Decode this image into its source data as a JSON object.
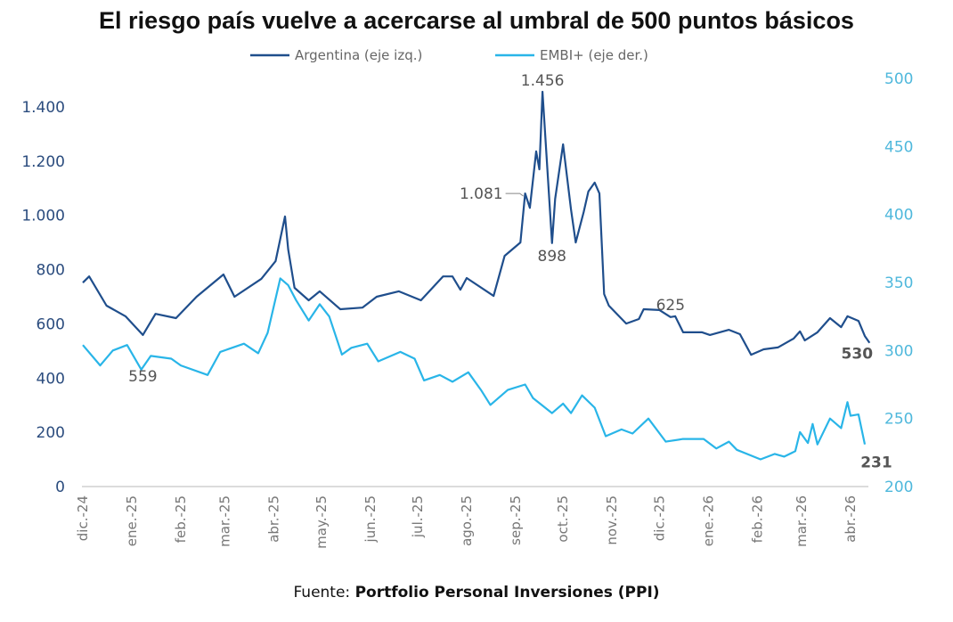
{
  "chart_data": {
    "type": "line",
    "title": "El riesgo país vuelve a acercarse al umbral de 500 puntos básicos",
    "source_prefix": "Fuente: ",
    "source": "Portfolio Personal Inversiones (PPI)",
    "legend_placement": "top",
    "grid": false,
    "x_range": [
      "2024-12-01",
      "2026-04-13"
    ],
    "x_ticks": [
      {
        "date": "2024-12-01",
        "label": "dic.-24"
      },
      {
        "date": "2025-01-01",
        "label": "ene.-25"
      },
      {
        "date": "2025-02-01",
        "label": "feb.-25"
      },
      {
        "date": "2025-03-01",
        "label": "mar.-25"
      },
      {
        "date": "2025-04-01",
        "label": "abr.-25"
      },
      {
        "date": "2025-05-01",
        "label": "may.-25"
      },
      {
        "date": "2025-06-01",
        "label": "jun.-25"
      },
      {
        "date": "2025-07-01",
        "label": "jul.-25"
      },
      {
        "date": "2025-08-01",
        "label": "ago.-25"
      },
      {
        "date": "2025-09-01",
        "label": "sep.-25"
      },
      {
        "date": "2025-10-01",
        "label": "oct.-25"
      },
      {
        "date": "2025-11-01",
        "label": "nov.-25"
      },
      {
        "date": "2025-12-01",
        "label": "dic.-25"
      },
      {
        "date": "2026-01-01",
        "label": "ene.-26"
      },
      {
        "date": "2026-02-01",
        "label": "feb.-26"
      },
      {
        "date": "2026-03-01",
        "label": "mar.-26"
      },
      {
        "date": "2026-04-01",
        "label": "abr.-26"
      }
    ],
    "y_left": {
      "range": [
        0,
        1400
      ],
      "ticks": [
        0,
        200,
        400,
        600,
        800,
        1000,
        1200,
        1400
      ],
      "tick_labels": [
        "0",
        "200",
        "400",
        "600",
        "800",
        "1.000",
        "1.200",
        "1.400"
      ]
    },
    "y_right": {
      "range": [
        200,
        500
      ],
      "ticks": [
        200,
        250,
        300,
        350,
        400,
        450,
        500
      ],
      "tick_labels": [
        "200",
        "250",
        "300",
        "350",
        "400",
        "450",
        "500"
      ]
    },
    "series": [
      {
        "name": "Argentina (eje izq.)",
        "axis": "left",
        "color": "#1f4e8c",
        "points": [
          [
            "2024-12-01",
            752
          ],
          [
            "2024-12-05",
            775
          ],
          [
            "2024-12-16",
            667
          ],
          [
            "2024-12-28",
            628
          ],
          [
            "2025-01-08",
            559
          ],
          [
            "2025-01-16",
            637
          ],
          [
            "2025-01-29",
            621
          ],
          [
            "2025-02-11",
            700
          ],
          [
            "2025-02-28",
            782
          ],
          [
            "2025-03-07",
            700
          ],
          [
            "2025-03-24",
            766
          ],
          [
            "2025-04-02",
            831
          ],
          [
            "2025-04-08",
            996
          ],
          [
            "2025-04-10",
            874
          ],
          [
            "2025-04-14",
            733
          ],
          [
            "2025-04-23",
            687
          ],
          [
            "2025-04-30",
            720
          ],
          [
            "2025-05-13",
            654
          ],
          [
            "2025-05-27",
            660
          ],
          [
            "2025-06-05",
            700
          ],
          [
            "2025-06-19",
            720
          ],
          [
            "2025-07-03",
            687
          ],
          [
            "2025-07-17",
            775
          ],
          [
            "2025-07-23",
            775
          ],
          [
            "2025-07-28",
            726
          ],
          [
            "2025-08-01",
            769
          ],
          [
            "2025-08-18",
            703
          ],
          [
            "2025-08-25",
            851
          ],
          [
            "2025-09-04",
            900
          ],
          [
            "2025-09-07",
            1081
          ],
          [
            "2025-09-10",
            1028
          ],
          [
            "2025-09-14",
            1236
          ],
          [
            "2025-09-16",
            1170
          ],
          [
            "2025-09-18",
            1456
          ],
          [
            "2025-09-24",
            898
          ],
          [
            "2025-09-26",
            1061
          ],
          [
            "2025-10-01",
            1262
          ],
          [
            "2025-10-06",
            1022
          ],
          [
            "2025-10-09",
            900
          ],
          [
            "2025-10-14",
            1012
          ],
          [
            "2025-10-17",
            1088
          ],
          [
            "2025-10-21",
            1121
          ],
          [
            "2025-10-24",
            1081
          ],
          [
            "2025-10-27",
            710
          ],
          [
            "2025-10-30",
            667
          ],
          [
            "2025-11-10",
            601
          ],
          [
            "2025-11-18",
            618
          ],
          [
            "2025-11-21",
            654
          ],
          [
            "2025-12-01",
            651
          ],
          [
            "2025-12-08",
            625
          ],
          [
            "2025-12-11",
            628
          ],
          [
            "2025-12-16",
            569
          ],
          [
            "2025-12-28",
            569
          ],
          [
            "2026-01-02",
            559
          ],
          [
            "2026-01-14",
            578
          ],
          [
            "2026-01-21",
            562
          ],
          [
            "2026-01-28",
            486
          ],
          [
            "2026-02-05",
            506
          ],
          [
            "2026-02-14",
            513
          ],
          [
            "2026-02-24",
            546
          ],
          [
            "2026-02-28",
            572
          ],
          [
            "2026-03-03",
            539
          ],
          [
            "2026-03-11",
            569
          ],
          [
            "2026-03-19",
            621
          ],
          [
            "2026-03-26",
            588
          ],
          [
            "2026-03-30",
            628
          ],
          [
            "2026-04-06",
            611
          ],
          [
            "2026-04-10",
            555
          ],
          [
            "2026-04-13",
            530
          ]
        ]
      },
      {
        "name": "EMBI+ (eje der.)",
        "axis": "right",
        "color": "#29b5e8",
        "points": [
          [
            "2024-12-01",
            304
          ],
          [
            "2024-12-12",
            289
          ],
          [
            "2024-12-20",
            300
          ],
          [
            "2024-12-29",
            304
          ],
          [
            "2025-01-07",
            286
          ],
          [
            "2025-01-13",
            296
          ],
          [
            "2025-01-26",
            294
          ],
          [
            "2025-02-01",
            289
          ],
          [
            "2025-02-18",
            282
          ],
          [
            "2025-02-26",
            299
          ],
          [
            "2025-03-13",
            305
          ],
          [
            "2025-03-22",
            298
          ],
          [
            "2025-03-28",
            313
          ],
          [
            "2025-04-05",
            353
          ],
          [
            "2025-04-10",
            348
          ],
          [
            "2025-04-15",
            337
          ],
          [
            "2025-04-23",
            322
          ],
          [
            "2025-04-30",
            334
          ],
          [
            "2025-05-06",
            325
          ],
          [
            "2025-05-14",
            297
          ],
          [
            "2025-05-20",
            302
          ],
          [
            "2025-05-30",
            305
          ],
          [
            "2025-06-06",
            292
          ],
          [
            "2025-06-20",
            299
          ],
          [
            "2025-06-29",
            294
          ],
          [
            "2025-07-05",
            278
          ],
          [
            "2025-07-15",
            282
          ],
          [
            "2025-07-23",
            277
          ],
          [
            "2025-08-02",
            284
          ],
          [
            "2025-08-10",
            271
          ],
          [
            "2025-08-16",
            260
          ],
          [
            "2025-08-27",
            271
          ],
          [
            "2025-09-07",
            275
          ],
          [
            "2025-09-12",
            265
          ],
          [
            "2025-09-24",
            254
          ],
          [
            "2025-10-01",
            261
          ],
          [
            "2025-10-06",
            254
          ],
          [
            "2025-10-13",
            267
          ],
          [
            "2025-10-21",
            258
          ],
          [
            "2025-10-28",
            237
          ],
          [
            "2025-11-07",
            242
          ],
          [
            "2025-11-14",
            239
          ],
          [
            "2025-11-24",
            250
          ],
          [
            "2025-12-05",
            233
          ],
          [
            "2025-12-16",
            235
          ],
          [
            "2025-12-29",
            235
          ],
          [
            "2026-01-06",
            228
          ],
          [
            "2026-01-14",
            233
          ],
          [
            "2026-01-19",
            227
          ],
          [
            "2026-02-03",
            220
          ],
          [
            "2026-02-12",
            224
          ],
          [
            "2026-02-18",
            222
          ],
          [
            "2026-02-25",
            226
          ],
          [
            "2026-02-28",
            240
          ],
          [
            "2026-03-05",
            232
          ],
          [
            "2026-03-08",
            246
          ],
          [
            "2026-03-11",
            231
          ],
          [
            "2026-03-19",
            250
          ],
          [
            "2026-03-26",
            243
          ],
          [
            "2026-03-30",
            262
          ],
          [
            "2026-04-01",
            252
          ],
          [
            "2026-04-06",
            253
          ],
          [
            "2026-04-10",
            231
          ]
        ]
      }
    ],
    "annotations": [
      {
        "text": "1.456",
        "date": "2025-09-18",
        "value": 1456,
        "axis": "left",
        "style": "normal"
      },
      {
        "text": "1.081",
        "date": "2025-09-07",
        "value": 1081,
        "axis": "left",
        "style": "leader"
      },
      {
        "text": "898",
        "date": "2025-09-24",
        "value": 898,
        "axis": "left",
        "style": "normal"
      },
      {
        "text": "625",
        "date": "2025-12-08",
        "value": 625,
        "axis": "left",
        "style": "normal"
      },
      {
        "text": "559",
        "date": "2025-01-08",
        "value": 559,
        "axis": "left",
        "style": "normal"
      },
      {
        "text": "530",
        "date": "2026-04-13",
        "value": 530,
        "axis": "left",
        "style": "bold-dark"
      },
      {
        "text": "231",
        "date": "2026-04-10",
        "value": 231,
        "axis": "right",
        "style": "bold-cyan"
      }
    ]
  }
}
